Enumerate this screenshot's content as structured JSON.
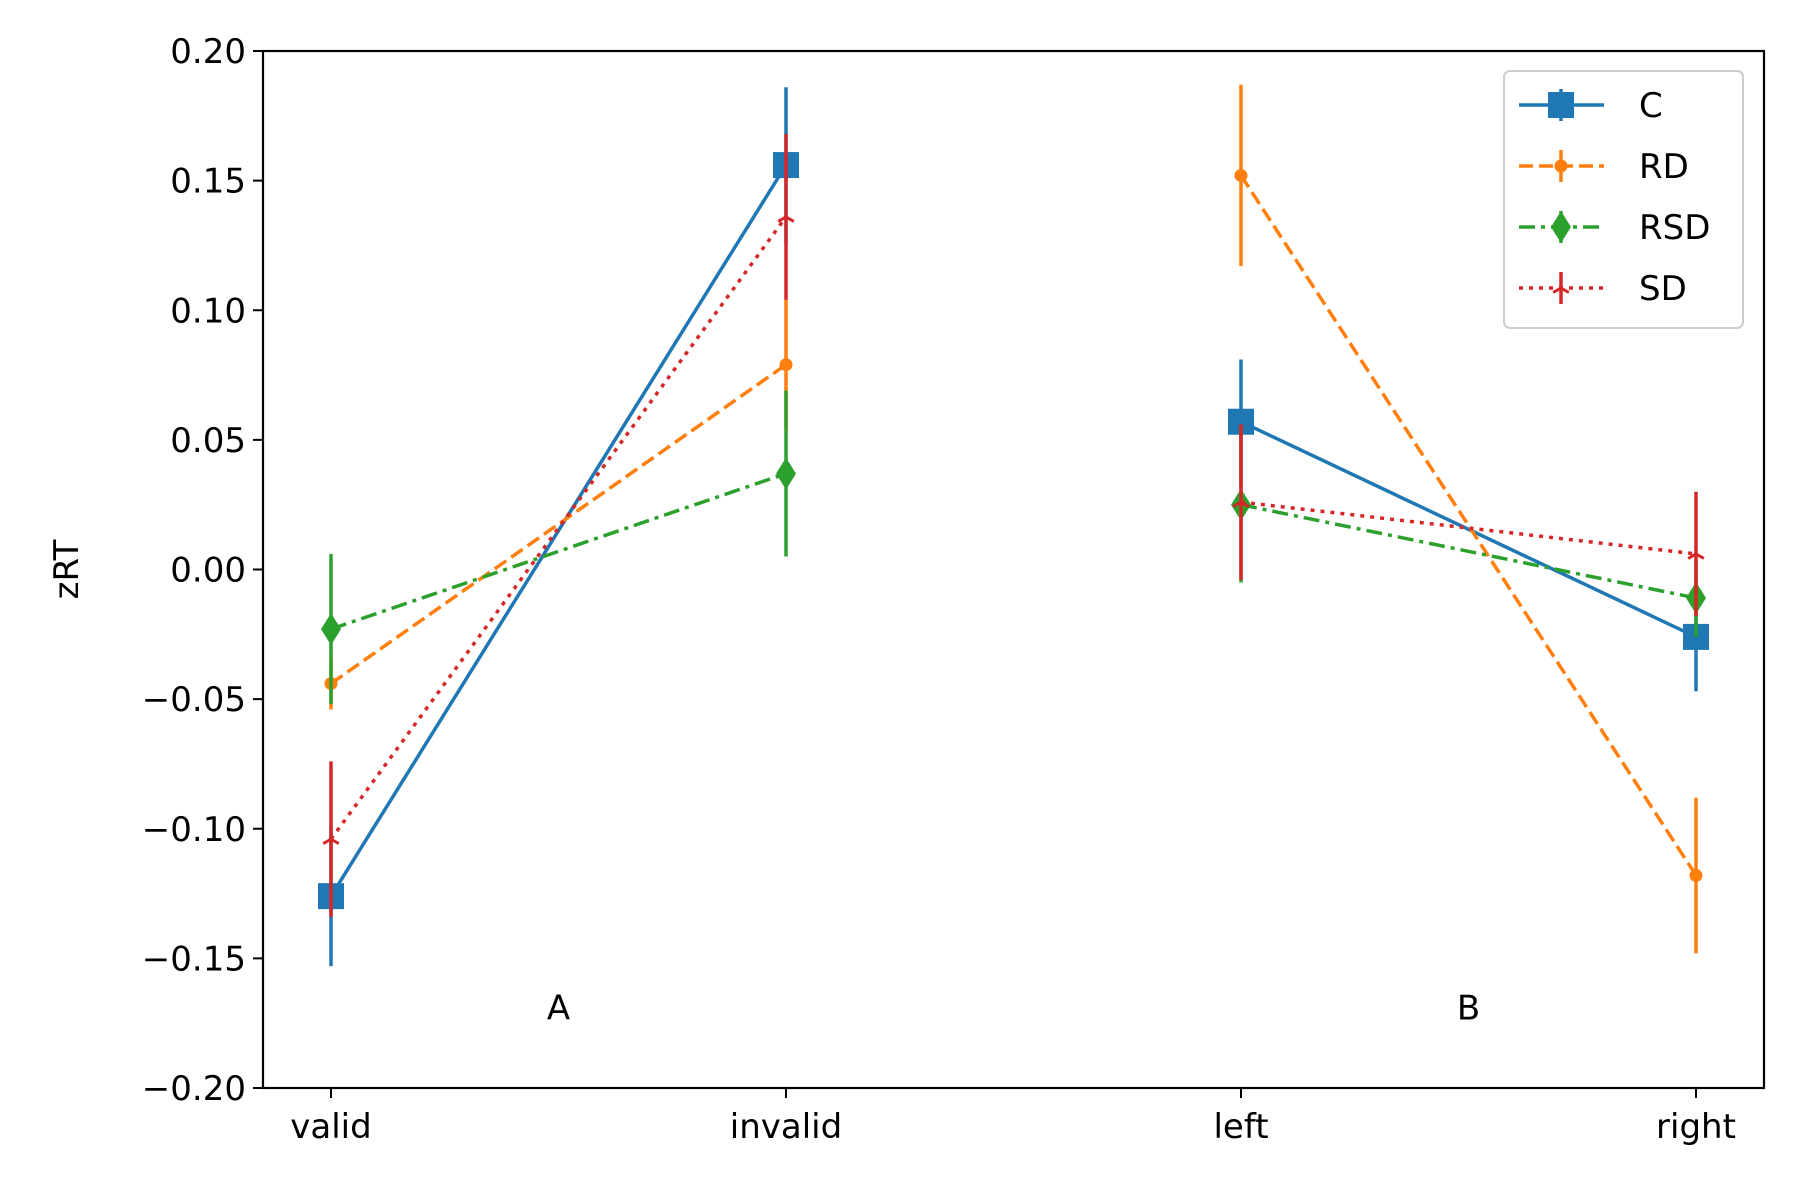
{
  "chart_data": {
    "type": "line",
    "title": "",
    "xlabel": "",
    "ylabel": "zRT",
    "ylim": [
      -0.2,
      0.2
    ],
    "yticks": [
      "0.20",
      "0.15",
      "0.10",
      "0.05",
      "0.00",
      "−0.05",
      "−0.10",
      "−0.15",
      "−0.20"
    ],
    "ytick_values": [
      0.2,
      0.15,
      0.1,
      0.05,
      0.0,
      -0.05,
      -0.1,
      -0.15,
      -0.2
    ],
    "categories": [
      "valid",
      "invalid",
      "left",
      "right"
    ],
    "panel_labels": [
      {
        "text": "A",
        "between": [
          "valid",
          "invalid"
        ],
        "y": -0.169
      },
      {
        "text": "B",
        "between": [
          "left",
          "right"
        ],
        "y": -0.169
      }
    ],
    "grid": false,
    "legend_position": "top-right",
    "groups": [
      [
        "valid",
        "invalid"
      ],
      [
        "left",
        "right"
      ]
    ],
    "series": [
      {
        "name": "C",
        "color": "#1f77b4",
        "dash": "solid",
        "marker": "square",
        "values": [
          -0.126,
          0.156,
          0.057,
          -0.026
        ],
        "errors": [
          0.027,
          0.03,
          0.024,
          0.021
        ]
      },
      {
        "name": "RD",
        "color": "#ff7f0e",
        "dash": "dashed",
        "marker": "circle",
        "values": [
          -0.044,
          0.079,
          0.152,
          -0.118
        ],
        "errors": [
          0.01,
          0.025,
          0.035,
          0.03
        ]
      },
      {
        "name": "RSD",
        "color": "#2ca02c",
        "dash": "dashdot",
        "marker": "diamond",
        "values": [
          -0.023,
          0.037,
          0.025,
          -0.011
        ],
        "errors": [
          0.029,
          0.032,
          0.03,
          0.015
        ]
      },
      {
        "name": "SD",
        "color": "#d62728",
        "dash": "dotted",
        "marker": "tri",
        "values": [
          -0.104,
          0.136,
          0.026,
          0.006
        ],
        "errors": [
          0.03,
          0.032,
          0.03,
          0.024
        ]
      }
    ]
  }
}
